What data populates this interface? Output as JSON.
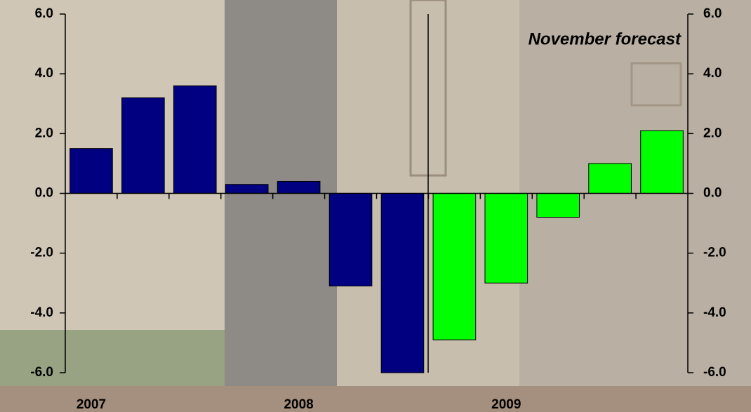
{
  "chart_data": {
    "type": "bar",
    "annotation": "November forecast",
    "categories": [
      "2007",
      null,
      null,
      null,
      "2008",
      null,
      null,
      null,
      "2009",
      null,
      null,
      null
    ],
    "values": [
      1.5,
      3.2,
      3.6,
      0.3,
      0.4,
      -3.1,
      -6.0,
      -4.9,
      -3.0,
      -0.8,
      1.0,
      2.1
    ],
    "colors": [
      "#000080",
      "#000080",
      "#000080",
      "#000080",
      "#000080",
      "#000080",
      "#000080",
      "#00ff00",
      "#00ff00",
      "#00ff00",
      "#00ff00",
      "#00ff00"
    ],
    "ylim": [
      -6,
      6
    ],
    "yticks": [
      {
        "value": -6,
        "label": "-6.0"
      },
      {
        "value": -4,
        "label": "-4.0"
      },
      {
        "value": -2,
        "label": "-2.0"
      },
      {
        "value": 0,
        "label": "0.0"
      },
      {
        "value": 2,
        "label": "2.0"
      },
      {
        "value": 4,
        "label": "4.0"
      },
      {
        "value": 6,
        "label": "6.0"
      }
    ],
    "y2lim": [
      -6,
      6
    ],
    "y2ticks": [
      {
        "value": -6,
        "label": "-6.0"
      },
      {
        "value": -4,
        "label": "-4.0"
      },
      {
        "value": -2,
        "label": "-2.0"
      },
      {
        "value": 0,
        "label": "0.0"
      },
      {
        "value": 2,
        "label": "2.0"
      },
      {
        "value": 4,
        "label": "4.0"
      },
      {
        "value": 6,
        "label": "6.0"
      }
    ]
  }
}
